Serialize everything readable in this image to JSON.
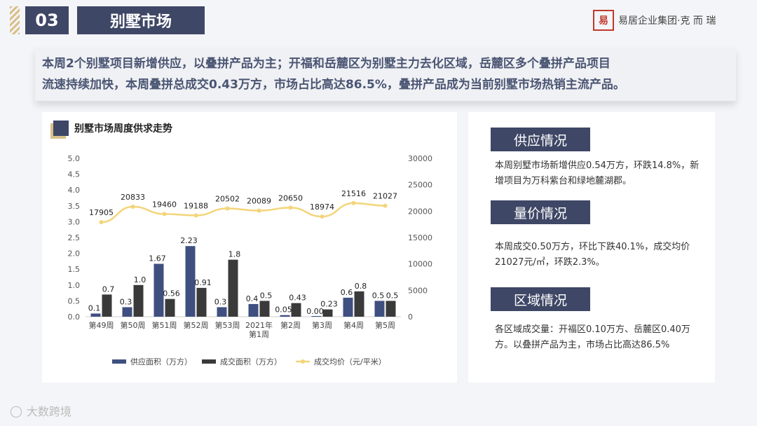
{
  "header": {
    "section_number": "03",
    "section_title": "别墅市场",
    "logo_seal": "易",
    "logo_text": "易居企业集团·克 而 瑞"
  },
  "summary": {
    "line1": "本周2个别墅项目新增供应，以叠拼产品为主；开福和岳麓区为别墅主力去化区域，岳麓区多个叠拼产品项目",
    "line2": "流速持续加快，本周叠拼总成交0.43万方，市场占比高达86.5%，叠拼产品成为当前别墅市场热销主流产品。"
  },
  "chart_title": "别墅市场周度供求走势",
  "chart_data": {
    "type": "bar",
    "categories": [
      "第49周",
      "第50周",
      "第51周",
      "第52周",
      "第53周",
      "2021年第1周",
      "第2周",
      "第3周",
      "第4周",
      "第5周"
    ],
    "category_lines": [
      [
        "第49周"
      ],
      [
        "第50周"
      ],
      [
        "第51周"
      ],
      [
        "第52周"
      ],
      [
        "第53周"
      ],
      [
        "2021年",
        "第1周"
      ],
      [
        "第2周"
      ],
      [
        "第3周"
      ],
      [
        "第4周"
      ],
      [
        "第5周"
      ]
    ],
    "series": [
      {
        "name": "供应面积（万方）",
        "axis": "left",
        "type": "bar",
        "color": "#3f4f80",
        "values": [
          0.1,
          0.3,
          1.67,
          2.23,
          0.3,
          0.4,
          0.05,
          0.0,
          0.6,
          0.5
        ],
        "labels": [
          "0.1",
          "0.3",
          "1.67",
          "2.23",
          "0.3",
          "0.4",
          "0.05",
          "0.00",
          "0.6",
          "0.5"
        ]
      },
      {
        "name": "成交面积（万方）",
        "axis": "left",
        "type": "bar",
        "color": "#3a3a3a",
        "values": [
          0.7,
          1.0,
          0.56,
          0.91,
          1.8,
          0.5,
          0.43,
          0.23,
          0.8,
          0.5
        ],
        "labels": [
          "0.7",
          "1.0",
          "0.56",
          "0.91",
          "1.8",
          "0.5",
          "0.43",
          "0.23",
          "0.8",
          "0.5"
        ]
      },
      {
        "name": "成交均价（元/平米）",
        "axis": "right",
        "type": "line",
        "color": "#f3d57a",
        "values": [
          17905,
          20833,
          19460,
          19188,
          20502,
          20089,
          20650,
          18974,
          21516,
          21027
        ],
        "labels": [
          "17905",
          "20833",
          "19460",
          "19188",
          "20502",
          "20089",
          "20650",
          "18974",
          "21516",
          "21027"
        ]
      }
    ],
    "ylim_left": [
      0,
      5
    ],
    "yticks_left": [
      "0.0",
      "0.5",
      "1.0",
      "1.5",
      "2.0",
      "2.5",
      "3.0",
      "3.5",
      "4.0",
      "4.5",
      "5.0"
    ],
    "ylim_right": [
      0,
      30000
    ],
    "yticks_right": [
      "0",
      "5000",
      "10000",
      "15000",
      "20000",
      "25000",
      "30000"
    ],
    "grid": false,
    "legend_position": "bottom"
  },
  "sections": [
    {
      "title": "供应情况",
      "text": "本周别墅市场新增供应0.54万方，环跌14.8%，新增项目为万科紫台和绿地麓湖郡。"
    },
    {
      "title": "量价情况",
      "text": "本周成交0.50万方，环比下跌40.1%，成交均价21027元/㎡，环跌2.3%。"
    },
    {
      "title": "区域情况",
      "text": "各区域成交量：开福区0.10万方、岳麓区0.40万方。以叠拼产品为主，市场占比高达86.5%"
    }
  ],
  "footer": {
    "icon": "watermark-logo-icon",
    "text": "大数跨境"
  }
}
